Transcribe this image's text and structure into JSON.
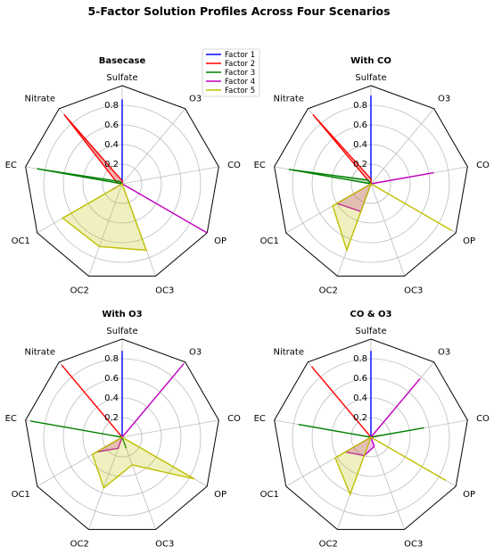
{
  "figure": {
    "title": "5-Factor Solution Profiles Across Four Scenarios"
  },
  "legend": {
    "placement": "top-center",
    "entries": [
      {
        "name": "Factor 1",
        "color": "#0000ff"
      },
      {
        "name": "Factor 2",
        "color": "#ff0000"
      },
      {
        "name": "Factor 3",
        "color": "#008000"
      },
      {
        "name": "Factor 4",
        "color": "#bf00bf"
      },
      {
        "name": "Factor 5",
        "color": "#bfbf00"
      }
    ]
  },
  "chart_data": [
    {
      "type": "radar",
      "title": "Basecase",
      "axes": [
        "Sulfate",
        "O3",
        "CO",
        "OP",
        "OC3",
        "OC2",
        "OC1",
        "EC",
        "Nitrate"
      ],
      "rlim": [
        0,
        1.0
      ],
      "rticks": [
        "0.2",
        "0.4",
        "0.6",
        "0.8"
      ],
      "grid": true,
      "series": [
        {
          "name": "Factor 1",
          "values": [
            0.86,
            0.0,
            0.0,
            0.0,
            0.0,
            0.0,
            0.0,
            0.0,
            0.0
          ]
        },
        {
          "name": "Factor 2",
          "values": [
            0.03,
            0.0,
            0.0,
            0.0,
            0.0,
            0.0,
            0.0,
            0.05,
            0.92
          ]
        },
        {
          "name": "Factor 3",
          "values": [
            0.0,
            0.0,
            0.0,
            0.0,
            0.0,
            0.0,
            0.0,
            0.88,
            0.03
          ]
        },
        {
          "name": "Factor 4",
          "values": [
            0.0,
            0.0,
            0.0,
            1.0,
            0.0,
            0.0,
            0.12,
            0.0,
            0.0
          ]
        },
        {
          "name": "Factor 5",
          "values": [
            0.0,
            0.0,
            0.0,
            0.0,
            0.72,
            0.68,
            0.7,
            0.0,
            0.0
          ]
        }
      ]
    },
    {
      "type": "radar",
      "title": "With CO",
      "axes": [
        "Sulfate",
        "O3",
        "CO",
        "OP",
        "OC3",
        "OC2",
        "OC1",
        "EC",
        "Nitrate"
      ],
      "rlim": [
        0,
        1.0
      ],
      "rticks": [
        "0.2",
        "0.4",
        "0.6",
        "0.8"
      ],
      "grid": true,
      "series": [
        {
          "name": "Factor 1",
          "values": [
            0.9,
            0.0,
            0.0,
            0.0,
            0.0,
            0.0,
            0.0,
            0.0,
            0.0
          ]
        },
        {
          "name": "Factor 2",
          "values": [
            0.05,
            0.0,
            0.05,
            0.0,
            0.0,
            0.0,
            0.0,
            0.0,
            0.92
          ]
        },
        {
          "name": "Factor 3",
          "values": [
            0.0,
            0.0,
            0.0,
            0.0,
            0.0,
            0.0,
            0.0,
            0.85,
            0.05
          ]
        },
        {
          "name": "Factor 4",
          "values": [
            0.0,
            0.0,
            0.65,
            0.0,
            0.0,
            0.3,
            0.4,
            0.0,
            0.0
          ]
        },
        {
          "name": "Factor 5",
          "values": [
            0.0,
            0.0,
            0.0,
            0.95,
            0.0,
            0.72,
            0.45,
            0.0,
            0.0
          ]
        }
      ]
    },
    {
      "type": "radar",
      "title": "With O3",
      "axes": [
        "Sulfate",
        "O3",
        "CO",
        "OP",
        "OC3",
        "OC2",
        "OC1",
        "EC",
        "Nitrate"
      ],
      "rlim": [
        0,
        1.0
      ],
      "rticks": [
        "0.2",
        "0.4",
        "0.6",
        "0.8"
      ],
      "grid": true,
      "series": [
        {
          "name": "Factor 1",
          "values": [
            0.88,
            0.0,
            0.0,
            0.0,
            0.0,
            0.0,
            0.0,
            0.0,
            0.0
          ]
        },
        {
          "name": "Factor 2",
          "values": [
            0.0,
            0.0,
            0.0,
            0.0,
            0.0,
            0.0,
            0.0,
            0.0,
            0.96
          ]
        },
        {
          "name": "Factor 3",
          "values": [
            0.0,
            0.0,
            0.0,
            0.0,
            0.12,
            0.0,
            0.0,
            0.95,
            0.0
          ]
        },
        {
          "name": "Factor 4",
          "values": [
            0.0,
            0.98,
            0.0,
            0.0,
            0.0,
            0.12,
            0.3,
            0.0,
            0.0
          ]
        },
        {
          "name": "Factor 5",
          "values": [
            0.0,
            0.0,
            0.0,
            0.85,
            0.3,
            0.55,
            0.35,
            0.0,
            0.0
          ]
        }
      ]
    },
    {
      "type": "radar",
      "title": "CO & O3",
      "axes": [
        "Sulfate",
        "O3",
        "CO",
        "OP",
        "OC3",
        "OC2",
        "OC1",
        "EC",
        "Nitrate"
      ],
      "rlim": [
        0,
        1.0
      ],
      "rticks": [
        "0.2",
        "0.4",
        "0.6",
        "0.8"
      ],
      "grid": true,
      "series": [
        {
          "name": "Factor 1",
          "values": [
            0.88,
            0.0,
            0.0,
            0.0,
            0.0,
            0.0,
            0.0,
            0.0,
            0.0
          ]
        },
        {
          "name": "Factor 2",
          "values": [
            0.0,
            0.0,
            0.1,
            0.0,
            0.0,
            0.0,
            0.0,
            0.0,
            0.94
          ]
        },
        {
          "name": "Factor 3",
          "values": [
            0.0,
            0.0,
            0.55,
            0.0,
            0.0,
            0.0,
            0.0,
            0.75,
            0.0
          ]
        },
        {
          "name": "Factor 4",
          "values": [
            0.0,
            0.78,
            0.0,
            0.0,
            0.1,
            0.2,
            0.3,
            0.0,
            0.0
          ]
        },
        {
          "name": "Factor 5",
          "values": [
            0.0,
            0.0,
            0.0,
            0.88,
            0.0,
            0.62,
            0.42,
            0.0,
            0.0
          ]
        }
      ]
    }
  ]
}
